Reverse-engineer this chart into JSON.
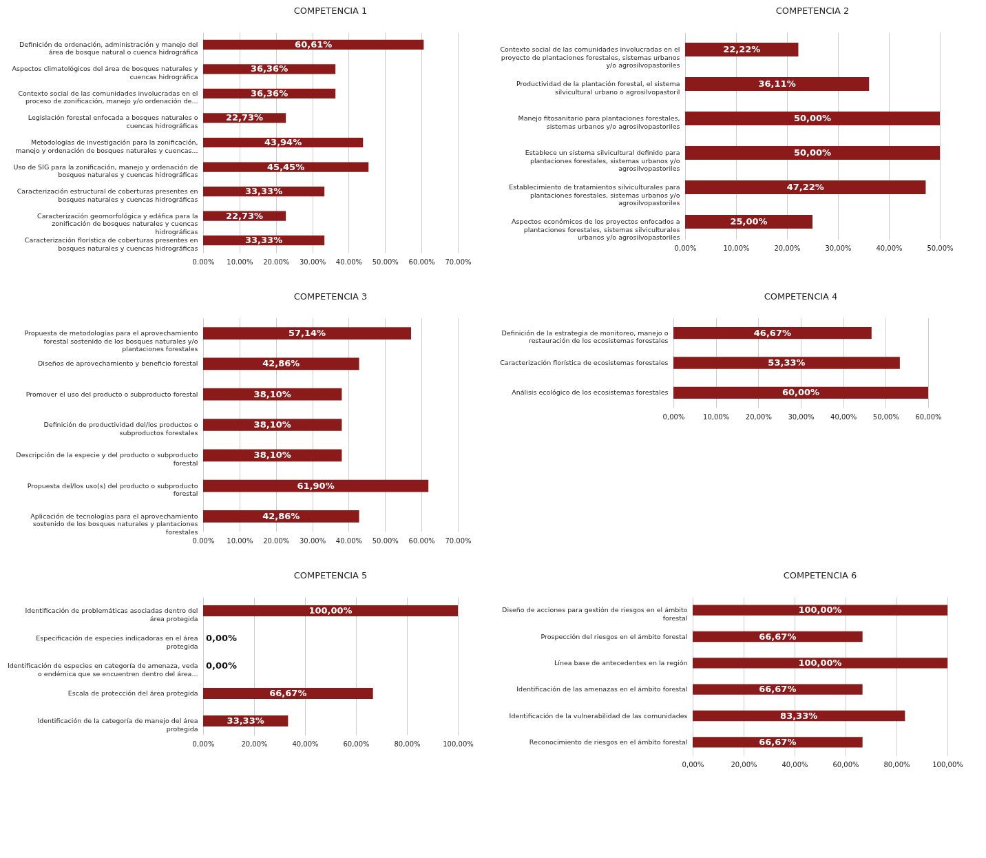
{
  "chart_data": [
    {
      "type": "bar",
      "orientation": "horizontal",
      "title": "COMPETENCIA  1",
      "categories": [
        "Definición de ordenación, administración y manejo del área de bosque natural o cuenca hidrográfica",
        "Aspectos climatológicos del área de bosques naturales y cuencas hidrográfica",
        "Contexto social de las comunidades involucradas en el proceso de zonificación, manejo y/o ordenación de...",
        "Legislación forestal enfocada a bosques naturales o cuencas hidrográficas",
        "Metodologías de investigación para la zonificación, manejo y ordenación de bosques naturales y cuencas...",
        "Uso de SIG para la zonificación, manejo y ordenación de bosques naturales y cuencas hidrográficas",
        "Caracterización estructural de coberturas presentes en bosques naturales y cuencas hidrográficas",
        "Caracterización geomorfológica y edáfica para la zonificación de bosques naturales y cuencas hidrográficas",
        "Caracterización florística de coberturas presentes en bosques naturales y cuencas hidrográficas"
      ],
      "values": [
        60.61,
        36.36,
        36.36,
        22.73,
        43.94,
        45.45,
        33.33,
        22.73,
        33.33
      ],
      "value_labels": [
        "60,61%",
        "36,36%",
        "36,36%",
        "22,73%",
        "43,94%",
        "45,45%",
        "33,33%",
        "22,73%",
        "33,33%"
      ],
      "color": "#8b1a1a",
      "xlim": [
        0,
        70
      ],
      "xticks": [
        {
          "value": 0,
          "label": "0.00%"
        },
        {
          "value": 10,
          "label": "10.00%"
        },
        {
          "value": 20,
          "label": "20.00%"
        },
        {
          "value": 30,
          "label": "30.00%"
        },
        {
          "value": 40,
          "label": "40.00%"
        },
        {
          "value": 50,
          "label": "50.00%"
        },
        {
          "value": 60,
          "label": "60.00%"
        },
        {
          "value": 70,
          "label": "70.00%"
        }
      ],
      "grid": "x"
    },
    {
      "type": "bar",
      "orientation": "horizontal",
      "title": "COMPETENCIA  2",
      "categories": [
        "Contexto social de las comunidades involucradas en el proyecto de plantaciones forestales, sistemas urbanos y/o agrosilvopastoriles",
        "Productividad de la plantación forestal, el sistema silvicultural urbano o agrosilvopastoril",
        "Manejo fitosanitario para plantaciones forestales, sistemas urbanos y/o agrosilvopastoriles",
        "Establece un sistema silvicultural definido para plantaciones forestales, sistemas urbanos y/o agrosilvopastoriles",
        "Establecimiento de tratamientos silviculturales para plantaciones forestales, sistemas urbanos y/o agrosilvopastoriles",
        "Aspectos económicos de los proyectos enfocados a plantaciones forestales, sistemas silviculturales urbanos y/o agrosilvopastoriles"
      ],
      "values": [
        22.22,
        36.11,
        50,
        50,
        47.22,
        25
      ],
      "value_labels": [
        "22,22%",
        "36,11%",
        "50,00%",
        "50,00%",
        "47,22%",
        "25,00%"
      ],
      "color": "#8b1a1a",
      "xlim": [
        0,
        50
      ],
      "xticks": [
        {
          "value": 0,
          "label": "0,00%"
        },
        {
          "value": 10,
          "label": "10,00%"
        },
        {
          "value": 20,
          "label": "20,00%"
        },
        {
          "value": 30,
          "label": "30,00%"
        },
        {
          "value": 40,
          "label": "40,00%"
        },
        {
          "value": 50,
          "label": "50,00%"
        }
      ],
      "grid": "x"
    },
    {
      "type": "bar",
      "orientation": "horizontal",
      "title": "COMPETENCIA  3",
      "categories": [
        "Propuesta de metodologías para el aprovechamiento forestal sostenido de los bosques naturales y/o plantaciones forestales",
        "Diseños de aprovechamiento y beneficio forestal",
        "Promover el uso del producto o subproducto forestal",
        "Definición de productividad del/los productos o subproductos forestales",
        "Descripción de la especie y del producto o subproducto forestal",
        "Propuesta del/los uso(s) del producto o subproducto forestal",
        "Aplicación de tecnologías para el aprovechamiento sostenido de los bosques naturales y plantaciones forestales"
      ],
      "values": [
        57.14,
        42.86,
        38.1,
        38.1,
        38.1,
        61.9,
        42.86
      ],
      "value_labels": [
        "57,14%",
        "42,86%",
        "38,10%",
        "38,10%",
        "38,10%",
        "61,90%",
        "42,86%"
      ],
      "color": "#8b1a1a",
      "xlim": [
        0,
        70
      ],
      "xticks": [
        {
          "value": 0,
          "label": "0.00%"
        },
        {
          "value": 10,
          "label": "10.00%"
        },
        {
          "value": 20,
          "label": "20.00%"
        },
        {
          "value": 30,
          "label": "30.00%"
        },
        {
          "value": 40,
          "label": "40.00%"
        },
        {
          "value": 50,
          "label": "50.00%"
        },
        {
          "value": 60,
          "label": "60.00%"
        },
        {
          "value": 70,
          "label": "70.00%"
        }
      ],
      "grid": "x"
    },
    {
      "type": "bar",
      "orientation": "horizontal",
      "title": "COMPETENCIA  4",
      "categories": [
        "Definición de la estrategia de monitoreo, manejo o restauración de los ecosistemas forestales",
        "Caracterización florística de ecosistemas forestales",
        "Análisis ecológico de los ecosistemas forestales"
      ],
      "values": [
        46.67,
        53.33,
        60
      ],
      "value_labels": [
        "46,67%",
        "53,33%",
        "60,00%"
      ],
      "color": "#8b1a1a",
      "xlim": [
        0,
        60
      ],
      "xticks": [
        {
          "value": 0,
          "label": "0,00%"
        },
        {
          "value": 10,
          "label": "10,00%"
        },
        {
          "value": 20,
          "label": "20,00%"
        },
        {
          "value": 30,
          "label": "30,00%"
        },
        {
          "value": 40,
          "label": "40,00%"
        },
        {
          "value": 50,
          "label": "50,00%"
        },
        {
          "value": 60,
          "label": "60,00%"
        }
      ],
      "grid": "x"
    },
    {
      "type": "bar",
      "orientation": "horizontal",
      "title": "COMPETENCIA  5",
      "categories": [
        "Identificación de problemáticas asociadas dentro del área protegida",
        "Especificación de especies indicadoras en el área protegida",
        "Identificación de especies en categoría de amenaza, veda o endémica que se encuentren dentro del área...",
        "Escala de protección del área protegida",
        "Identificación de la categoría de manejo del área protegida"
      ],
      "values": [
        100,
        0,
        0,
        66.67,
        33.33
      ],
      "value_labels": [
        "100,00%",
        "0,00%",
        "0,00%",
        "66,67%",
        "33,33%"
      ],
      "color": "#8b1a1a",
      "xlim": [
        0,
        100
      ],
      "xticks": [
        {
          "value": 0,
          "label": "0,00%"
        },
        {
          "value": 20,
          "label": "20,00%"
        },
        {
          "value": 40,
          "label": "40,00%"
        },
        {
          "value": 60,
          "label": "60,00%"
        },
        {
          "value": 80,
          "label": "80,00%"
        },
        {
          "value": 100,
          "label": "100,00%"
        }
      ],
      "grid": "x"
    },
    {
      "type": "bar",
      "orientation": "horizontal",
      "title": "COMPETENCIA  6",
      "categories": [
        "Diseño de acciones para gestión de riesgos en el ámbito forestal",
        "Prospección del riesgos en el ámbito forestal",
        "Línea base de antecedentes en la región",
        "Identificación de las amenazas en el ámbito forestal",
        "Identificación de la vulnerabilidad de las comunidades",
        "Reconocimiento de riesgos en el ámbito forestal"
      ],
      "values": [
        100,
        66.67,
        100,
        66.67,
        83.33,
        66.67
      ],
      "value_labels": [
        "100,00%",
        "66,67%",
        "100,00%",
        "66,67%",
        "83,33%",
        "66,67%"
      ],
      "color": "#8b1a1a",
      "xlim": [
        0,
        100
      ],
      "xticks": [
        {
          "value": 0,
          "label": "0,00%"
        },
        {
          "value": 20,
          "label": "20,00%"
        },
        {
          "value": 40,
          "label": "40,00%"
        },
        {
          "value": 60,
          "label": "60,00%"
        },
        {
          "value": 80,
          "label": "80,00%"
        },
        {
          "value": 100,
          "label": "100,00%"
        }
      ],
      "grid": "x"
    }
  ]
}
